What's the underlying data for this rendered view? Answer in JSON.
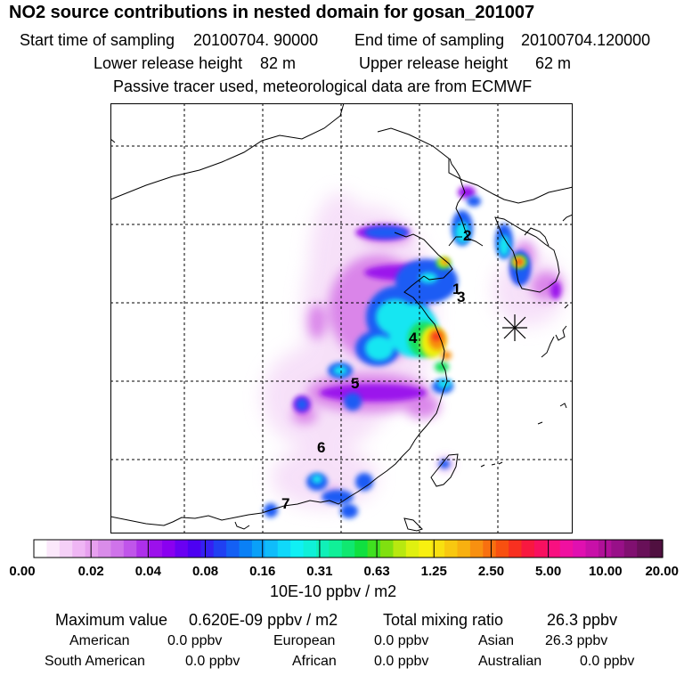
{
  "title": "NO2 source contributions in nested domain for gosan_201007",
  "sampling": {
    "start_label": "Start time of sampling",
    "start_value": "20100704. 90000",
    "end_label": "End time of sampling",
    "end_value": "20100704.120000"
  },
  "release": {
    "lower_label": "Lower release height",
    "lower_value": "82 m",
    "upper_label": "Upper release height",
    "upper_value": "62 m"
  },
  "tracer_note": "Passive tracer used, meteorological data are from ECMWF",
  "map": {
    "receptor_marker": "asterisk-receptor-icon",
    "labels": [
      {
        "text": "1"
      },
      {
        "text": "2"
      },
      {
        "text": "3"
      },
      {
        "text": "4"
      },
      {
        "text": "5"
      },
      {
        "text": "6"
      },
      {
        "text": "7"
      }
    ]
  },
  "colorbar": {
    "tick_labels": [
      "0.00",
      "0.02",
      "0.04",
      "0.08",
      "0.16",
      "0.31",
      "0.63",
      "1.25",
      "2.50",
      "5.00",
      "10.00",
      "20.00"
    ],
    "colors": [
      "#ffffff",
      "#fbe8fb",
      "#f5d0f7",
      "#efb6f4",
      "#e7a0ef",
      "#d98ce9",
      "#cf73ea",
      "#c055ea",
      "#ae30ea",
      "#9c10ec",
      "#8a00f0",
      "#6a00f2",
      "#4d00f2",
      "#3520f2",
      "#2040f2",
      "#1460f4",
      "#0a80f6",
      "#0aa0f8",
      "#10bcfa",
      "#10d8fa",
      "#10f0f4",
      "#10f0d8",
      "#10f0b8",
      "#10f098",
      "#10e870",
      "#10e040",
      "#40e020",
      "#80e010",
      "#b8e810",
      "#e0f010",
      "#f8f010",
      "#f8e010",
      "#f8c810",
      "#f8b010",
      "#f89010",
      "#f87010",
      "#f85010",
      "#f83020",
      "#f81840",
      "#f81060",
      "#f81080",
      "#f010a0",
      "#e010b0",
      "#c810a8",
      "#b01098",
      "#981088",
      "#801070",
      "#681058",
      "#501040"
    ],
    "units": "10E-10 ppbv / m2"
  },
  "summary": {
    "max_label": "Maximum value",
    "max_value": "0.620E-09 ppbv / m2",
    "total_label": "Total mixing ratio",
    "total_value": "26.3 ppbv",
    "regions": {
      "american_label": "American",
      "american_value": "0.0 ppbv",
      "european_label": "European",
      "european_value": "0.0 ppbv",
      "asian_label": "Asian",
      "asian_value": "26.3 ppbv",
      "south_american_label": "South American",
      "south_american_value": "0.0 ppbv",
      "african_label": "African",
      "african_value": "0.0 ppbv",
      "australian_label": "Australian",
      "australian_value": "0.0 ppbv"
    }
  }
}
